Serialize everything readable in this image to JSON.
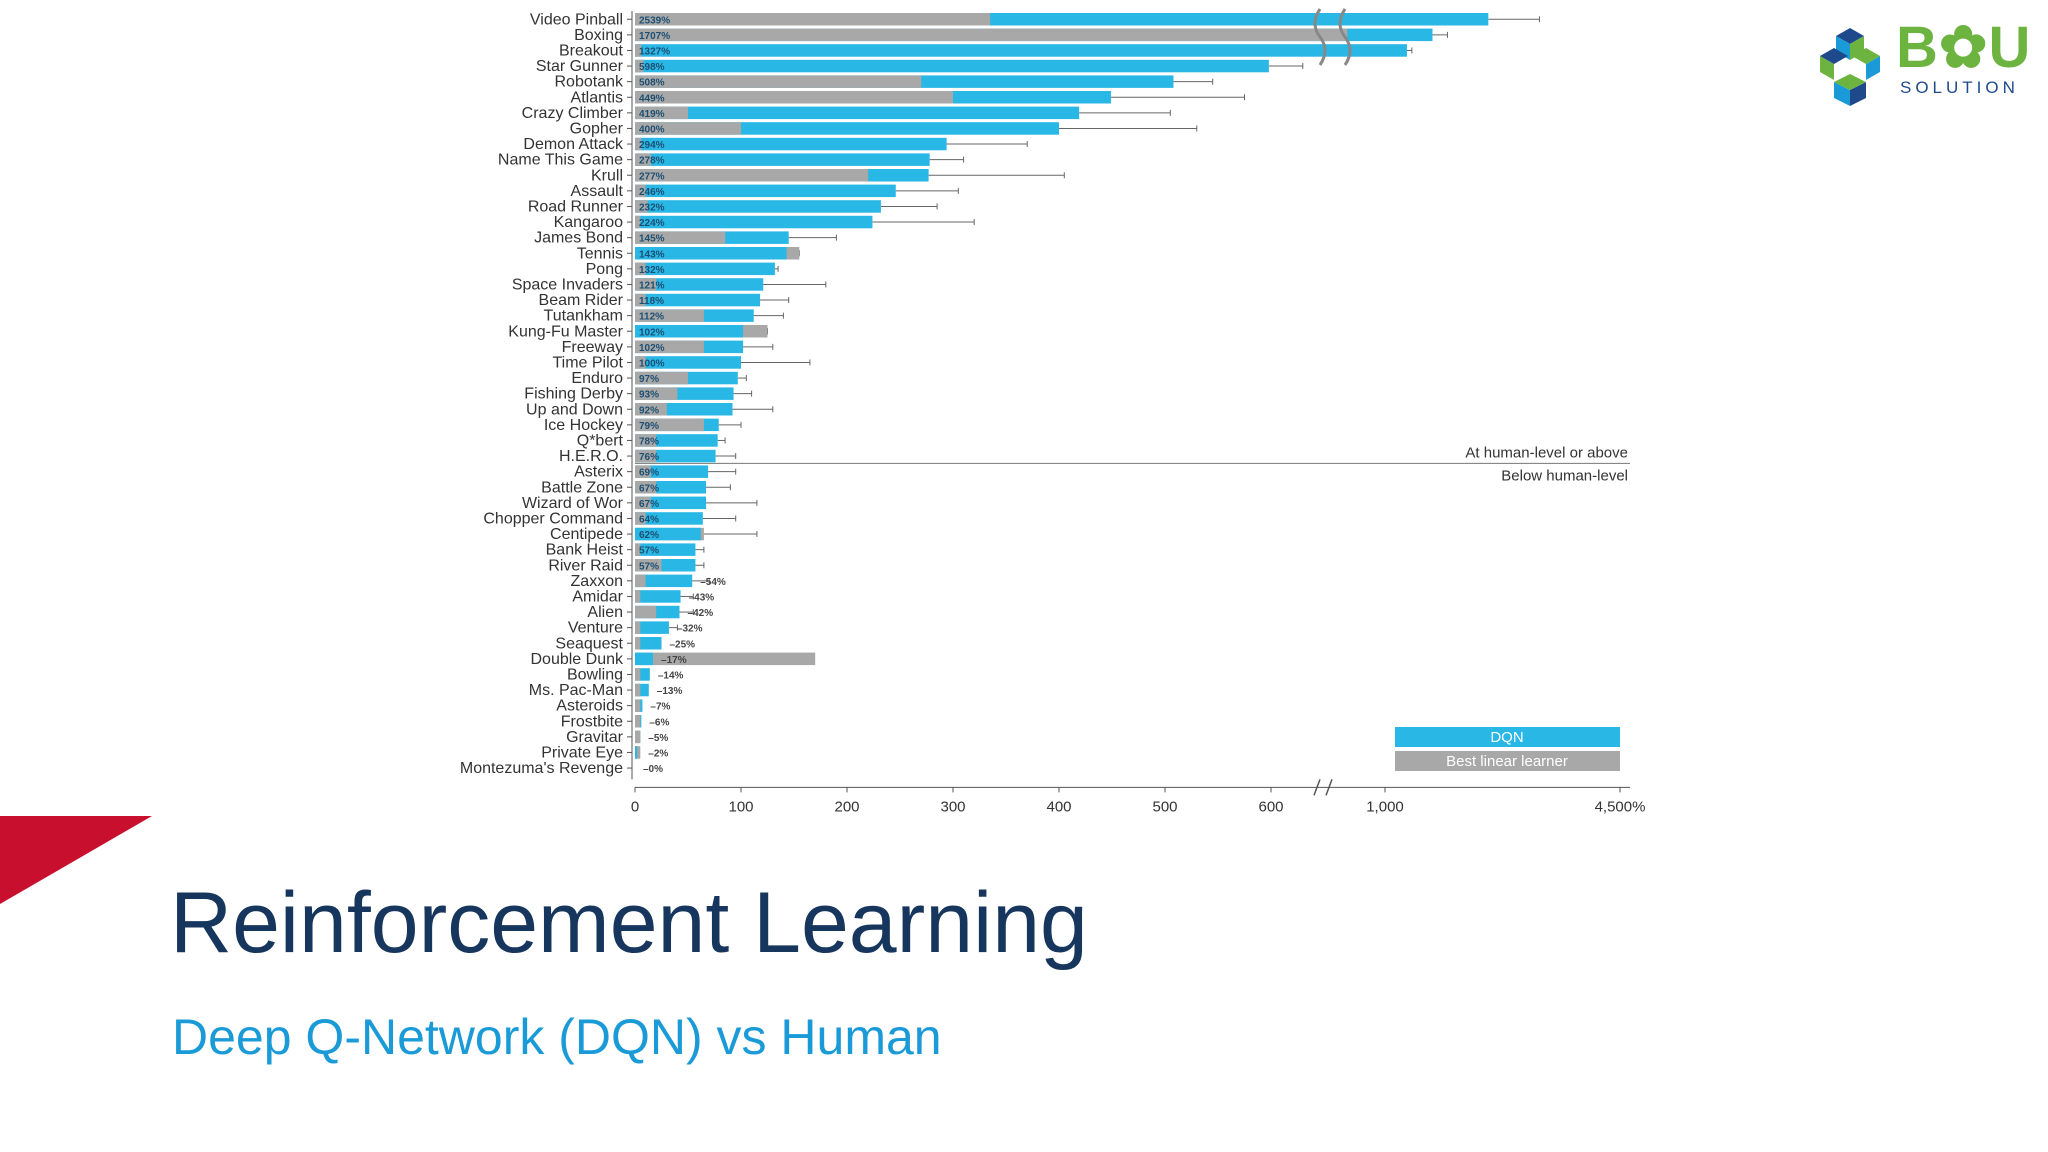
{
  "slide": {
    "title": "Reinforcement Learning",
    "subtitle": "Deep Q-Network (DQN) vs Human"
  },
  "logo": {
    "text": "B✿U",
    "subtext": "SOLUTION",
    "icon": "hexagon-cubes-icon"
  },
  "colors": {
    "dqn": "#29b7e6",
    "linear": "#a8a8a8",
    "title": "#17365d",
    "subtitle": "#1a9bd7",
    "accent_red": "#c8102e",
    "logo_green": "#6cb43f",
    "logo_blue": "#1e4a8c"
  },
  "chart_data": {
    "type": "bar",
    "orientation": "horizontal",
    "xaxis_ticks": [
      "0",
      "100",
      "200",
      "300",
      "400",
      "500",
      "600",
      "1,000",
      "4,500%"
    ],
    "axis_break": true,
    "threshold_labels": {
      "above": "At human-level or above",
      "below": "Below human-level"
    },
    "legend": [
      {
        "name": "DQN",
        "color": "#29b7e6"
      },
      {
        "name": "Best linear learner",
        "color": "#a8a8a8"
      }
    ],
    "legend_position": "bottom-right",
    "categories": [
      "Video Pinball",
      "Boxing",
      "Breakout",
      "Star Gunner",
      "Robotank",
      "Atlantis",
      "Crazy Climber",
      "Gopher",
      "Demon Attack",
      "Name This Game",
      "Krull",
      "Assault",
      "Road Runner",
      "Kangaroo",
      "James Bond",
      "Tennis",
      "Pong",
      "Space Invaders",
      "Beam Rider",
      "Tutankham",
      "Kung-Fu Master",
      "Freeway",
      "Time Pilot",
      "Enduro",
      "Fishing Derby",
      "Up and Down",
      "Ice Hockey",
      "Q*bert",
      "H.E.R.O.",
      "Asterix",
      "Battle Zone",
      "Wizard of Wor",
      "Chopper Command",
      "Centipede",
      "Bank Heist",
      "River Raid",
      "Zaxxon",
      "Amidar",
      "Alien",
      "Venture",
      "Seaquest",
      "Double Dunk",
      "Bowling",
      "Ms. Pac-Man",
      "Asteroids",
      "Frostbite",
      "Gravitar",
      "Private Eye",
      "Montezuma's Revenge"
    ],
    "dqn_labels": [
      "2539%",
      "1707%",
      "1327%",
      "598%",
      "508%",
      "449%",
      "419%",
      "400%",
      "294%",
      "278%",
      "277%",
      "246%",
      "232%",
      "224%",
      "145%",
      "143%",
      "132%",
      "121%",
      "118%",
      "112%",
      "102%",
      "102%",
      "100%",
      "97%",
      "93%",
      "92%",
      "79%",
      "78%",
      "76%",
      "69%",
      "67%",
      "67%",
      "64%",
      "62%",
      "57%",
      "57%",
      "54%",
      "43%",
      "42%",
      "32%",
      "25%",
      "17%",
      "14%",
      "13%",
      "7%",
      "6%",
      "5%",
      "2%",
      "0%"
    ],
    "series": [
      {
        "name": "DQN",
        "values": [
          2539,
          1707,
          1327,
          598,
          508,
          449,
          419,
          400,
          294,
          278,
          277,
          246,
          232,
          224,
          145,
          143,
          132,
          121,
          118,
          112,
          102,
          102,
          100,
          97,
          93,
          92,
          79,
          78,
          76,
          69,
          67,
          67,
          64,
          62,
          57,
          57,
          54,
          43,
          42,
          32,
          25,
          17,
          14,
          13,
          7,
          6,
          5,
          2,
          0
        ]
      },
      {
        "name": "Best linear learner",
        "values": [
          335,
          680,
          6,
          8,
          270,
          300,
          50,
          100,
          6,
          15,
          220,
          10,
          12,
          5,
          85,
          155,
          10,
          20,
          10,
          65,
          125,
          65,
          10,
          50,
          40,
          30,
          65,
          20,
          20,
          15,
          20,
          15,
          10,
          65,
          5,
          25,
          10,
          5,
          20,
          5,
          5,
          170,
          5,
          5,
          5,
          5,
          5,
          5,
          0
        ]
      }
    ],
    "error_bars": [
      3300,
      1930,
      1400,
      630,
      545,
      575,
      505,
      530,
      370,
      310,
      405,
      305,
      285,
      320,
      190,
      155,
      135,
      180,
      145,
      140,
      125,
      130,
      165,
      105,
      110,
      130,
      100,
      85,
      95,
      95,
      90,
      115,
      95,
      115,
      65,
      65,
      70,
      55,
      55,
      40,
      0,
      100,
      0,
      0,
      0,
      0,
      0,
      0,
      0
    ]
  }
}
